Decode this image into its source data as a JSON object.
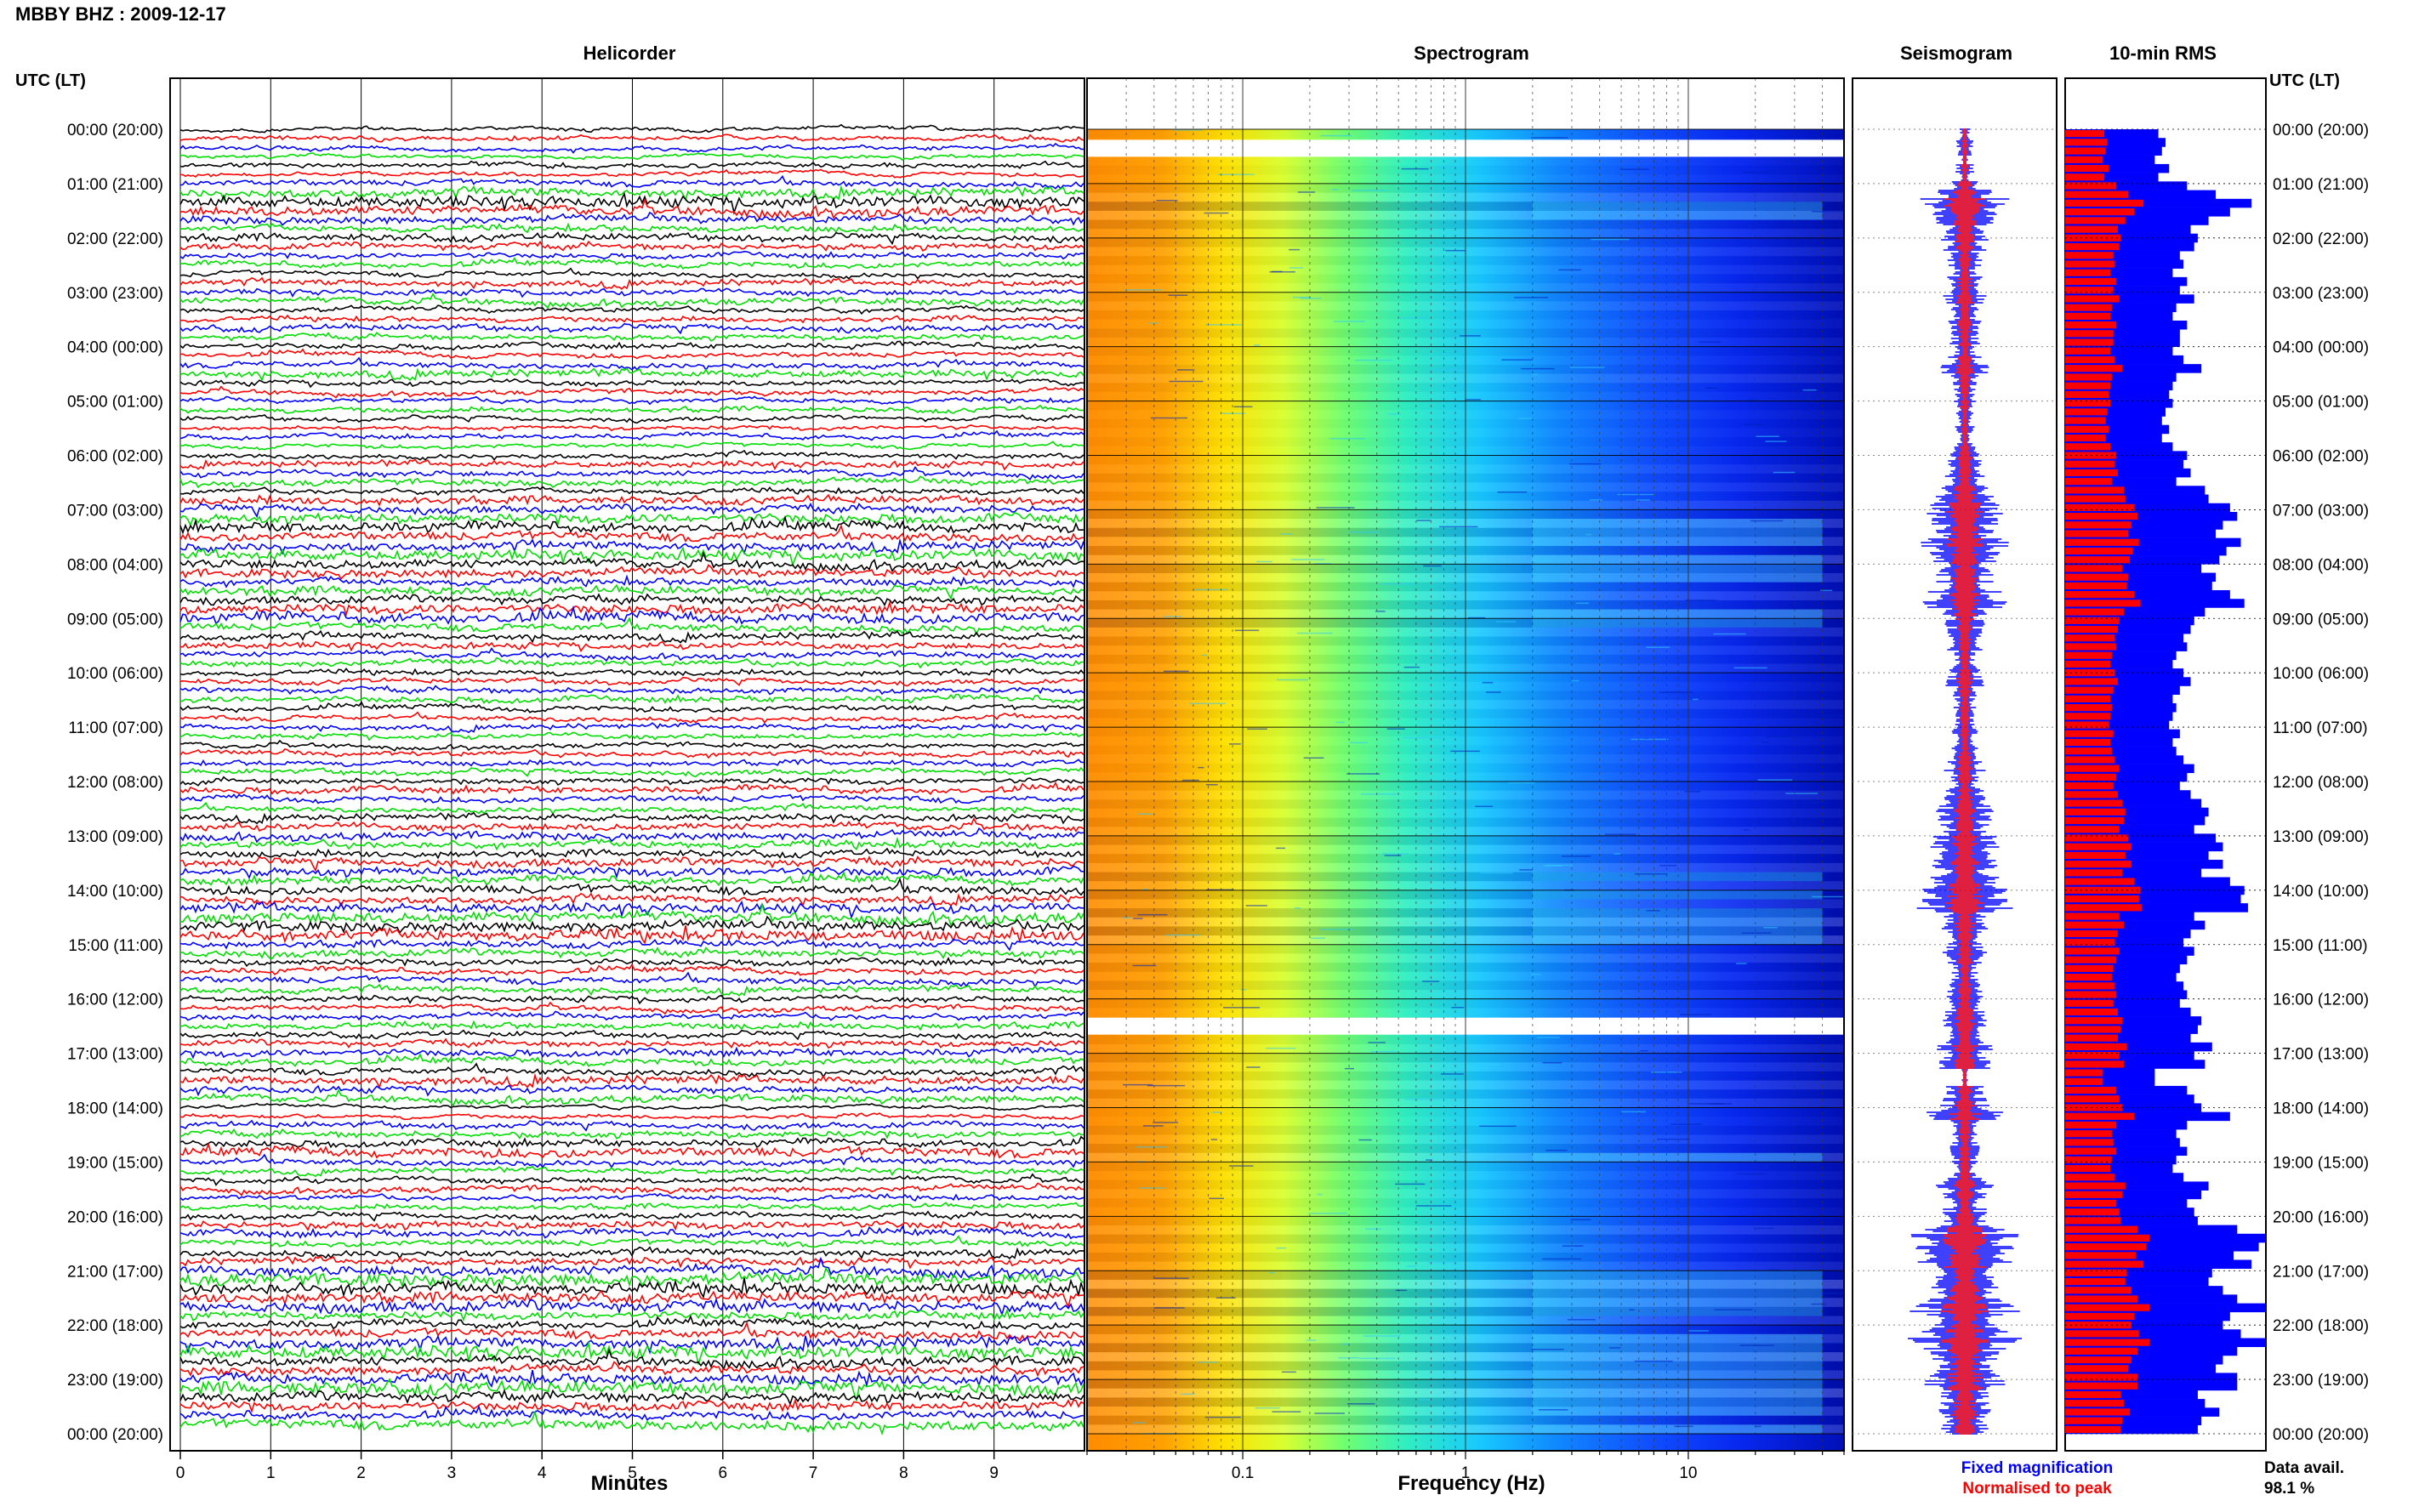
{
  "header": {
    "station_date": "MBBY BHZ : 2009-12-17"
  },
  "chart_data": {
    "type": "heatmap",
    "panels": {
      "helicorder": "Helicorder",
      "spectrogram": "Spectrogram",
      "seismogram": "Seismogram",
      "rms": "10-min RMS"
    },
    "time_axis_title": "UTC (LT)",
    "time_labels": [
      "00:00 (20:00)",
      "01:00 (21:00)",
      "02:00 (22:00)",
      "03:00 (23:00)",
      "04:00 (00:00)",
      "05:00 (01:00)",
      "06:00 (02:00)",
      "07:00 (03:00)",
      "08:00 (04:00)",
      "09:00 (05:00)",
      "10:00 (06:00)",
      "11:00 (07:00)",
      "12:00 (08:00)",
      "13:00 (09:00)",
      "14:00 (10:00)",
      "15:00 (11:00)",
      "16:00 (12:00)",
      "17:00 (13:00)",
      "18:00 (14:00)",
      "19:00 (15:00)",
      "20:00 (16:00)",
      "21:00 (17:00)",
      "22:00 (18:00)",
      "23:00 (19:00)",
      "00:00 (20:00)"
    ],
    "helicorder_x": {
      "label": "Minutes",
      "ticks": [
        "0",
        "1",
        "2",
        "3",
        "4",
        "5",
        "6",
        "7",
        "8",
        "9"
      ],
      "lines_per_hour": 6,
      "trace_colors": [
        "#000000",
        "#ff0000",
        "#0000ff",
        "#00dd00"
      ]
    },
    "spectrogram_x": {
      "label": "Frequency (Hz)",
      "scale": "log",
      "ticks": [
        "0.1",
        "1",
        "10"
      ],
      "range": [
        0.02,
        50
      ]
    },
    "gaps_utc_hours": [
      16.5,
      0.35
    ],
    "rms_ratio_normalised": 0.42,
    "rms_fixed_10min": [
      2.6,
      2.8,
      2.7,
      2.5,
      2.9,
      2.6,
      3.4,
      4.2,
      5.2,
      4.6,
      4.0,
      3.5,
      3.7,
      3.6,
      3.2,
      3.3,
      3.0,
      3.4,
      3.2,
      3.6,
      3.1,
      3.0,
      3.4,
      3.2,
      3.2,
      3.0,
      3.3,
      3.8,
      3.1,
      3.0,
      2.9,
      3.0,
      2.8,
      2.7,
      2.9,
      2.7,
      3.0,
      3.4,
      3.3,
      3.5,
      3.1,
      3.9,
      4.0,
      4.6,
      4.8,
      4.4,
      4.2,
      4.9,
      4.5,
      4.3,
      3.8,
      4.2,
      4.1,
      4.6,
      5.0,
      3.9,
      3.6,
      3.5,
      3.3,
      3.4,
      3.1,
      3.0,
      3.3,
      3.5,
      3.2,
      3.0,
      3.1,
      3.0,
      2.9,
      3.2,
      3.0,
      3.1,
      3.3,
      3.6,
      3.4,
      3.2,
      3.5,
      3.8,
      4.0,
      3.9,
      3.6,
      4.2,
      4.4,
      4.0,
      4.4,
      3.8,
      4.6,
      5.0,
      4.9,
      5.1,
      3.6,
      3.9,
      3.5,
      3.3,
      3.6,
      3.4,
      3.2,
      3.1,
      3.3,
      3.4,
      3.2,
      3.5,
      3.8,
      3.7,
      3.5,
      4.1,
      3.6,
      3.9,
      2.5,
      2.5,
      3.4,
      3.6,
      3.8,
      4.6,
      3.4,
      3.1,
      3.2,
      3.4,
      3.1,
      3.0,
      3.3,
      4.0,
      3.8,
      3.4,
      3.6,
      3.7,
      4.8,
      5.6,
      5.4,
      4.7,
      5.2,
      4.1,
      4.0,
      4.4,
      4.8,
      5.6,
      4.6,
      4.4,
      4.9,
      5.6,
      4.8,
      4.4,
      4.2,
      4.8,
      4.8,
      3.7,
      3.9,
      4.3,
      3.8,
      3.7
    ],
    "legend": {
      "fixed": "Fixed magnification",
      "normalised": "Normalised to peak",
      "fixed_color": "#0000ff",
      "normalised_color": "#ff0000"
    },
    "data_availability": {
      "label": "Data avail.",
      "value": "98.1 %"
    }
  }
}
